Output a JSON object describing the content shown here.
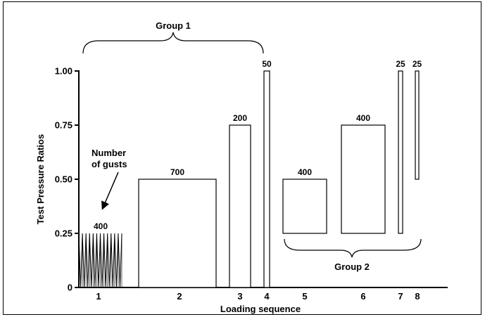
{
  "chart_data": {
    "type": "bar",
    "title": "",
    "xlabel": "Loading sequence",
    "ylabel": "Test Pressure Ratios",
    "ylim": [
      0,
      1.0
    ],
    "yticks": [
      "0",
      "0.25",
      "0.50",
      "0.75",
      "1.00"
    ],
    "ytick_values": [
      0,
      0.25,
      0.5,
      0.75,
      1.0
    ],
    "categories": [
      "1",
      "2",
      "3",
      "4",
      "5",
      "6",
      "7",
      "8"
    ],
    "blocks": [
      {
        "sequence": "1",
        "low": 0.0,
        "high": 0.25,
        "gusts": "400",
        "style": "oscillating"
      },
      {
        "sequence": "2",
        "low": 0.0,
        "high": 0.5,
        "gusts": "700"
      },
      {
        "sequence": "3",
        "low": 0.0,
        "high": 0.75,
        "gusts": "200"
      },
      {
        "sequence": "4",
        "low": 0.0,
        "high": 1.0,
        "gusts": "50"
      },
      {
        "sequence": "5",
        "low": 0.25,
        "high": 0.5,
        "gusts": "400"
      },
      {
        "sequence": "6",
        "low": 0.25,
        "high": 0.75,
        "gusts": "400"
      },
      {
        "sequence": "7",
        "low": 0.25,
        "high": 1.0,
        "gusts": "25"
      },
      {
        "sequence": "8",
        "low": 0.5,
        "high": 1.0,
        "gusts": "25"
      }
    ],
    "annotations": {
      "group1": "Group 1",
      "group2": "Group 2",
      "number_of_gusts_line1": "Number",
      "number_of_gusts_line2": "of gusts"
    },
    "grid": false
  }
}
